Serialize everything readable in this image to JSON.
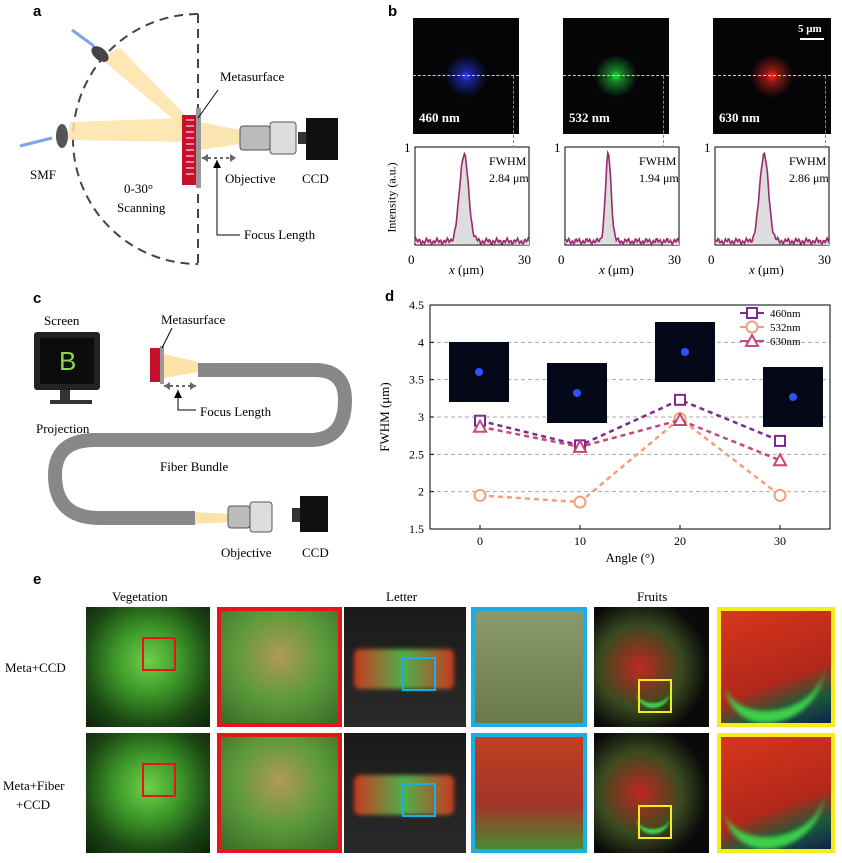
{
  "panels": {
    "a": {
      "letter": "a",
      "labels": {
        "metasurface": "Metasurface",
        "smf": "SMF",
        "scanning_range": "0-30°",
        "scanning": "Scanning",
        "objective": "Objective",
        "ccd": "CCD",
        "focus_length": "Focus Length"
      }
    },
    "b": {
      "letter": "b",
      "scale_bar": "5 μm",
      "y_label": "Intensity (a.u.)",
      "x_label_var": "x",
      "x_label_unit": " (μm)",
      "x_min": "0",
      "x_max": "30",
      "y_max": "1",
      "spots": [
        {
          "wavelength": "460 nm",
          "color": "#2a3cff",
          "fwhm_label": "FWHM",
          "fwhm": "2.84 μm"
        },
        {
          "wavelength": "532 nm",
          "color": "#22e03a",
          "fwhm_label": "FWHM",
          "fwhm": "1.94 μm"
        },
        {
          "wavelength": "630 nm",
          "color": "#ff2a1e",
          "fwhm_label": "FWHM",
          "fwhm": "2.86 μm"
        }
      ]
    },
    "c": {
      "letter": "c",
      "labels": {
        "screen": "Screen",
        "screen_glyph": "B",
        "projection": "Projection",
        "metasurface": "Metasurface",
        "focus_length": "Focus Length",
        "fiber_bundle": "Fiber Bundle",
        "objective": "Objective",
        "ccd": "CCD"
      }
    },
    "d": {
      "letter": "d"
    },
    "e": {
      "letter": "e",
      "columns": [
        "Vegetation",
        "Letter",
        "Fruits"
      ],
      "rows": [
        "Meta+CCD",
        "Meta+Fiber",
        "+CCD"
      ],
      "frame_colors": [
        "#e8141c",
        "#1aaee8",
        "#f5ec1a"
      ]
    }
  },
  "chart_data": {
    "type": "line",
    "xlabel": "Angle (°)",
    "ylabel": "FWHM (μm)",
    "x": [
      0,
      10,
      20,
      30
    ],
    "xlim": [
      -5,
      35
    ],
    "ylim": [
      1.5,
      4.5
    ],
    "yticks": [
      1.5,
      2,
      2.5,
      3,
      3.5,
      4,
      4.5
    ],
    "grid": "horizontal dashed",
    "legend_position": "top-right",
    "series": [
      {
        "name": "460nm",
        "values": [
          2.95,
          2.62,
          3.23,
          2.68
        ],
        "color": "#7b2a90",
        "marker": "square"
      },
      {
        "name": "532nm",
        "values": [
          1.95,
          1.86,
          2.98,
          1.95
        ],
        "color": "#f0a07a",
        "marker": "circle"
      },
      {
        "name": "630nm",
        "values": [
          2.87,
          2.6,
          2.96,
          2.42
        ],
        "color": "#c8467a",
        "marker": "triangle"
      }
    ]
  }
}
